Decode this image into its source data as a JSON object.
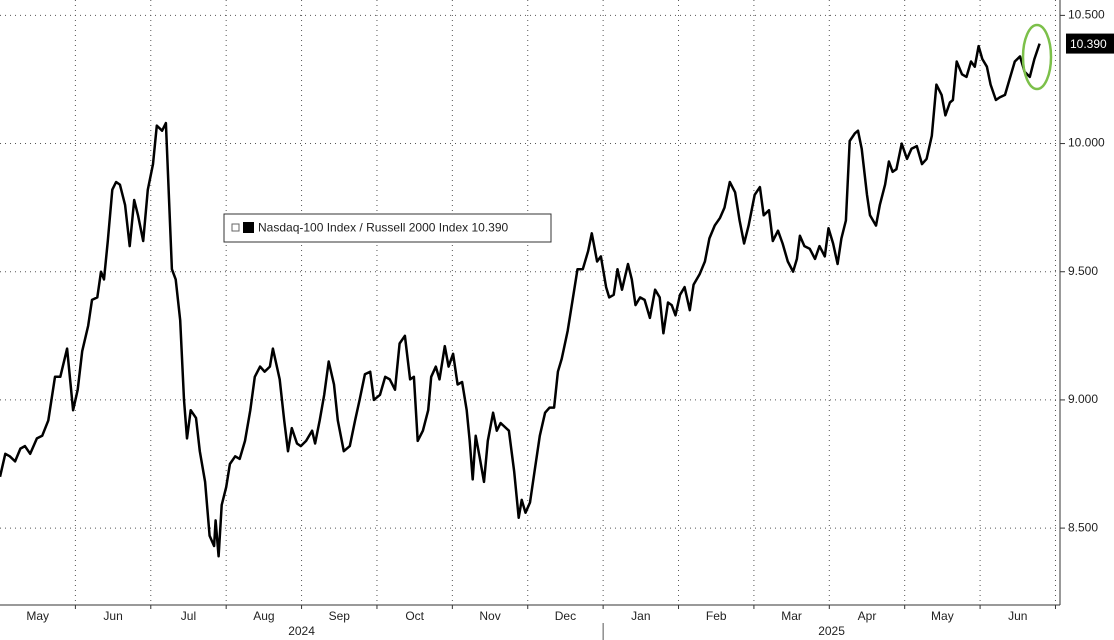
{
  "chart_data": {
    "type": "line",
    "x": [
      0,
      0.07,
      0.13,
      0.2,
      0.27,
      0.33,
      0.4,
      0.49,
      0.56,
      0.64,
      0.73,
      0.8,
      0.89,
      0.97,
      1.03,
      1.09,
      1.17,
      1.22,
      1.29,
      1.34,
      1.38,
      1.43,
      1.49,
      1.54,
      1.59,
      1.66,
      1.72,
      1.78,
      1.83,
      1.9,
      1.96,
      2.03,
      2.08,
      2.15,
      2.2,
      2.28,
      2.33,
      2.39,
      2.44,
      2.48,
      2.53,
      2.6,
      2.65,
      2.72,
      2.78,
      2.84,
      2.86,
      2.9,
      2.94,
      3.0,
      3.05,
      3.12,
      3.18,
      3.25,
      3.32,
      3.38,
      3.45,
      3.51,
      3.58,
      3.62,
      3.71,
      3.77,
      3.82,
      3.87,
      3.94,
      3.99,
      4.06,
      4.14,
      4.18,
      4.24,
      4.3,
      4.36,
      4.43,
      4.48,
      4.56,
      4.64,
      4.71,
      4.77,
      4.84,
      4.91,
      4.96,
      5.04,
      5.11,
      5.17,
      5.24,
      5.3,
      5.37,
      5.44,
      5.49,
      5.54,
      5.61,
      5.68,
      5.72,
      5.78,
      5.83,
      5.9,
      5.95,
      6.01,
      6.07,
      6.13,
      6.19,
      6.23,
      6.27,
      6.31,
      6.36,
      6.42,
      6.47,
      6.54,
      6.59,
      6.64,
      6.75,
      6.82,
      6.88,
      6.92,
      6.97,
      7.03,
      7.09,
      7.16,
      7.23,
      7.29,
      7.35,
      7.4,
      7.45,
      7.53,
      7.6,
      7.66,
      7.73,
      7.8,
      7.85,
      7.92,
      7.97,
      8.04,
      8.08,
      8.14,
      8.19,
      8.25,
      8.33,
      8.38,
      8.43,
      8.49,
      8.55,
      8.62,
      8.69,
      8.75,
      8.8,
      8.86,
      8.91,
      8.96,
      9.02,
      9.08,
      9.15,
      9.2,
      9.28,
      9.35,
      9.41,
      9.48,
      9.55,
      9.61,
      9.68,
      9.75,
      9.81,
      9.87,
      9.93,
      10.01,
      10.08,
      10.13,
      10.2,
      10.25,
      10.32,
      10.38,
      10.45,
      10.52,
      10.57,
      10.61,
      10.67,
      10.74,
      10.81,
      10.87,
      10.94,
      10.99,
      11.05,
      11.11,
      11.16,
      11.22,
      11.27,
      11.34,
      11.38,
      11.43,
      11.5,
      11.54,
      11.62,
      11.67,
      11.74,
      11.79,
      11.84,
      11.89,
      11.96,
      12.03,
      12.09,
      12.16,
      12.23,
      12.29,
      12.36,
      12.42,
      12.49,
      12.54,
      12.6,
      12.64,
      12.69,
      12.76,
      12.82,
      12.88,
      12.93,
      12.98,
      13.03,
      13.09,
      13.14,
      13.21,
      13.26,
      13.33,
      13.39,
      13.46,
      13.53,
      13.59,
      13.66,
      13.72,
      13.79
    ],
    "series": [
      {
        "name": "Nasdaq-100 Index / Russell 2000 Index",
        "color": "#000000",
        "values": [
          8.7,
          8.79,
          8.78,
          8.76,
          8.81,
          8.82,
          8.79,
          8.85,
          8.86,
          8.92,
          9.09,
          9.09,
          9.2,
          8.96,
          9.04,
          9.19,
          9.29,
          9.39,
          9.4,
          9.5,
          9.47,
          9.62,
          9.82,
          9.85,
          9.84,
          9.76,
          9.6,
          9.78,
          9.72,
          9.62,
          9.82,
          9.92,
          10.07,
          10.05,
          10.08,
          9.51,
          9.47,
          9.31,
          9.0,
          8.85,
          8.96,
          8.93,
          8.8,
          8.68,
          8.47,
          8.43,
          8.53,
          8.39,
          8.59,
          8.66,
          8.75,
          8.78,
          8.77,
          8.84,
          8.96,
          9.09,
          9.13,
          9.11,
          9.13,
          9.2,
          9.08,
          8.92,
          8.8,
          8.89,
          8.83,
          8.82,
          8.84,
          8.88,
          8.83,
          8.92,
          9.02,
          9.15,
          9.06,
          8.92,
          8.8,
          8.82,
          8.92,
          9.0,
          9.1,
          9.11,
          9.0,
          9.02,
          9.09,
          9.08,
          9.04,
          9.22,
          9.25,
          9.08,
          9.09,
          8.84,
          8.88,
          8.96,
          9.09,
          9.13,
          9.08,
          9.21,
          9.13,
          9.18,
          9.06,
          9.07,
          8.96,
          8.84,
          8.69,
          8.86,
          8.78,
          8.68,
          8.84,
          8.95,
          8.88,
          8.91,
          8.88,
          8.72,
          8.54,
          8.61,
          8.56,
          8.6,
          8.72,
          8.86,
          8.95,
          8.97,
          8.97,
          9.11,
          9.16,
          9.27,
          9.4,
          9.51,
          9.51,
          9.58,
          9.65,
          9.54,
          9.56,
          9.44,
          9.4,
          9.41,
          9.51,
          9.43,
          9.53,
          9.47,
          9.37,
          9.4,
          9.39,
          9.32,
          9.43,
          9.4,
          9.26,
          9.38,
          9.37,
          9.33,
          9.41,
          9.44,
          9.35,
          9.45,
          9.49,
          9.54,
          9.63,
          9.68,
          9.71,
          9.75,
          9.85,
          9.81,
          9.7,
          9.61,
          9.68,
          9.8,
          9.83,
          9.72,
          9.74,
          9.62,
          9.66,
          9.61,
          9.54,
          9.5,
          9.55,
          9.64,
          9.6,
          9.59,
          9.55,
          9.6,
          9.56,
          9.67,
          9.61,
          9.53,
          9.63,
          9.7,
          10.01,
          10.04,
          10.05,
          9.98,
          9.8,
          9.72,
          9.68,
          9.76,
          9.84,
          9.93,
          9.89,
          9.9,
          10.0,
          9.94,
          9.98,
          9.99,
          9.92,
          9.94,
          10.03,
          10.23,
          10.19,
          10.11,
          10.16,
          10.17,
          10.32,
          10.27,
          10.26,
          10.32,
          10.3,
          10.38,
          10.33,
          10.3,
          10.23,
          10.17,
          10.18,
          10.19,
          10.25,
          10.32,
          10.34,
          10.28,
          10.26,
          10.33,
          10.39
        ]
      }
    ],
    "current_value": {
      "value": 10.39,
      "label": "10.390"
    },
    "xlim": [
      0,
      14.06
    ],
    "xticks": [
      {
        "value": 0.5,
        "label": "May"
      },
      {
        "value": 1.5,
        "label": "Jun"
      },
      {
        "value": 2.5,
        "label": "Jul"
      },
      {
        "value": 3.5,
        "label": "Aug"
      },
      {
        "value": 4.5,
        "label": "Sep"
      },
      {
        "value": 5.5,
        "label": "Oct"
      },
      {
        "value": 6.5,
        "label": "Nov"
      },
      {
        "value": 7.5,
        "label": "Dec"
      },
      {
        "value": 8.5,
        "label": "Jan"
      },
      {
        "value": 9.5,
        "label": "Feb"
      },
      {
        "value": 10.5,
        "label": "Mar"
      },
      {
        "value": 11.5,
        "label": "Apr"
      },
      {
        "value": 12.5,
        "label": "May"
      },
      {
        "value": 13.5,
        "label": "Jun"
      }
    ],
    "years": [
      "2024",
      "2025"
    ],
    "ylim": [
      8.2,
      10.56
    ],
    "yticks": [
      {
        "value": 8.5,
        "label": "8.500"
      },
      {
        "value": 9,
        "label": "9.000"
      },
      {
        "value": 9.5,
        "label": "9.500"
      },
      {
        "value": 10,
        "label": "10.000"
      },
      {
        "value": 10.5,
        "label": "10.500"
      }
    ],
    "grid": true
  }
}
